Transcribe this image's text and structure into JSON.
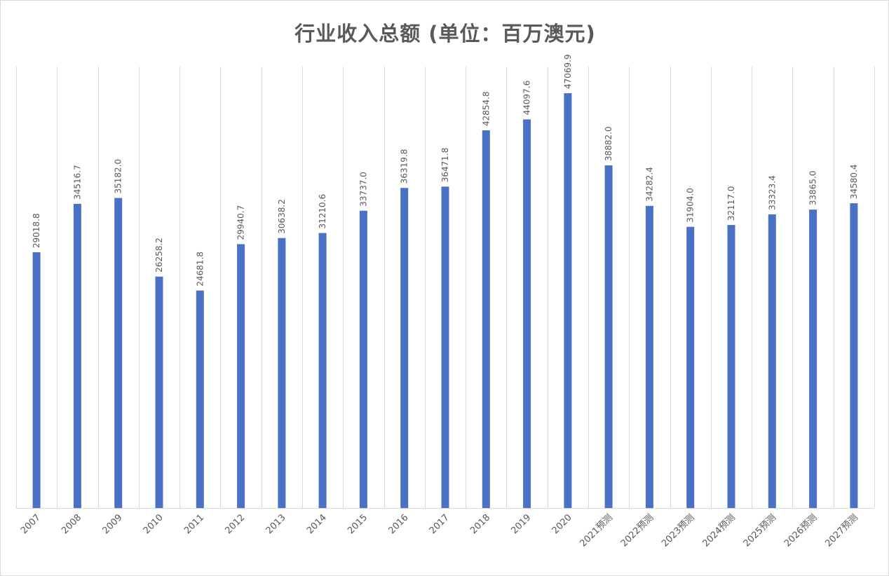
{
  "chart_data": {
    "type": "bar",
    "title": "行业收入总额 (单位：百万澳元)",
    "xlabel": "",
    "ylabel": "",
    "ylim": [
      0,
      50000
    ],
    "grid": "vertical",
    "legend": "none",
    "bar_color": "#4a72c4",
    "categories": [
      "2007",
      "2008",
      "2009",
      "2010",
      "2011",
      "2012",
      "2013",
      "2014",
      "2015",
      "2016",
      "2017",
      "2018",
      "2019",
      "2020",
      "2021预测",
      "2022预测",
      "2023预测",
      "2024预测",
      "2025预测",
      "2026预测",
      "2027预测"
    ],
    "values": [
      29018.8,
      34516.7,
      35182.0,
      26258.2,
      24681.8,
      29940.7,
      30638.2,
      31210.6,
      33737.0,
      36319.8,
      36471.8,
      42854.8,
      44097.6,
      47069.9,
      38882.0,
      34282.4,
      31904.0,
      32117.0,
      33323.4,
      33865.0,
      34580.4
    ],
    "value_labels": [
      "29018.8",
      "34516.7",
      "35182.0",
      "26258.2",
      "24681.8",
      "29940.7",
      "30638.2",
      "31210.6",
      "33737.0",
      "36319.8",
      "36471.8",
      "42854.8",
      "44097.6",
      "47069.9",
      "38882.0",
      "34282.4",
      "31904.0",
      "32117.0",
      "33323.4",
      "33865.0",
      "34580.4"
    ]
  }
}
